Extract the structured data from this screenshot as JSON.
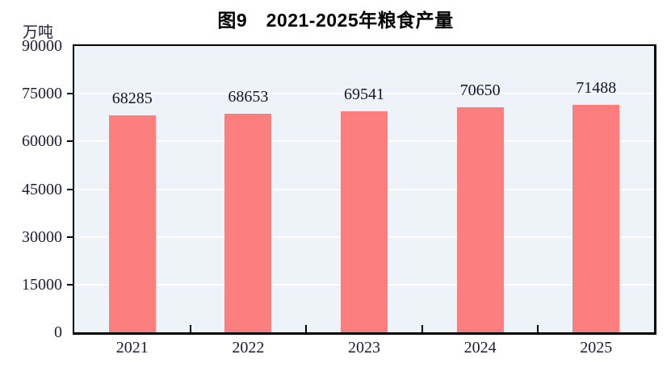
{
  "figure": {
    "title": "图9　2021-2025年粮食产量",
    "unit_label": "万吨"
  },
  "chart_data": {
    "type": "bar",
    "title": "图9　2021-2025年粮食产量",
    "unit_label": "万吨",
    "categories": [
      "2021",
      "2022",
      "2023",
      "2024",
      "2025"
    ],
    "values": [
      68285,
      68653,
      69541,
      70650,
      71488
    ],
    "xlabel": "",
    "ylabel": "万吨",
    "ylim": [
      0,
      90000
    ],
    "ytick_step": 15000,
    "ytick_labels": [
      "0",
      "15000",
      "30000",
      "45000",
      "60000",
      "75000",
      "90000"
    ],
    "grid": true,
    "gridline_orientation": "horizontal",
    "legend": "none",
    "data_labels": true,
    "colors": {
      "bar": "#FC7E7E",
      "plot_bg": "#EDF3F8",
      "gridline": "#FFFFFF",
      "axis": "#000000",
      "tick_text": "#1C1C35",
      "value_text": "#14142B",
      "title_text": "#000000"
    }
  }
}
